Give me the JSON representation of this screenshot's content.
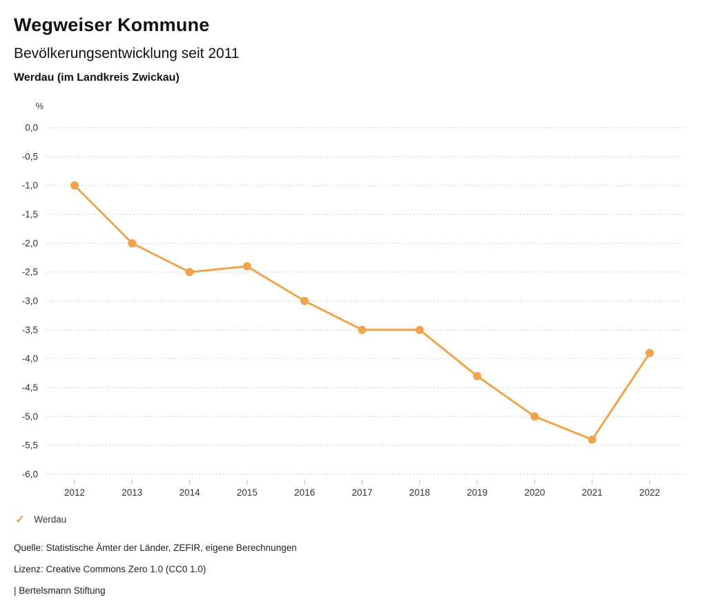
{
  "header": {
    "title": "Wegweiser Kommune",
    "subtitle": "Bevölkerungsentwicklung seit 2011",
    "region": "Werdau (im Landkreis Zwickau)"
  },
  "chart_data": {
    "type": "line",
    "unit_label": "%",
    "x": [
      "2012",
      "2013",
      "2014",
      "2015",
      "2016",
      "2017",
      "2018",
      "2019",
      "2020",
      "2021",
      "2022"
    ],
    "series": [
      {
        "name": "Werdau",
        "values": [
          -1.0,
          -2.0,
          -2.5,
          -2.4,
          -3.0,
          -3.5,
          -3.5,
          -4.3,
          -5.0,
          -5.4,
          -3.9
        ]
      }
    ],
    "ylim": [
      -6.0,
      0.0
    ],
    "ytick_step": 0.5,
    "ytick_labels": [
      "0,0",
      "-0,5",
      "-1,0",
      "-1,5",
      "-2,0",
      "-2,5",
      "-3,0",
      "-3,5",
      "-4,0",
      "-4,5",
      "-5,0",
      "-5,5",
      "-6,0"
    ],
    "grid": "horizontal-dotted",
    "legend_position": "bottom-left",
    "line_color": "#F0A34A",
    "grid_color": "#c4c4c4",
    "tick_color": "#bbbbbb",
    "axis_text_color": "#333333"
  },
  "legend": {
    "items": [
      {
        "label": "Werdau",
        "marker": "check-icon",
        "color": "#F0A34A"
      }
    ]
  },
  "footer": {
    "source": "Quelle: Statistische Ämter der Länder, ZEFIR, eigene Berechnungen",
    "license": "Lizenz: Creative Commons Zero 1.0 (CC0 1.0)",
    "attribution": "| Bertelsmann Stiftung"
  }
}
